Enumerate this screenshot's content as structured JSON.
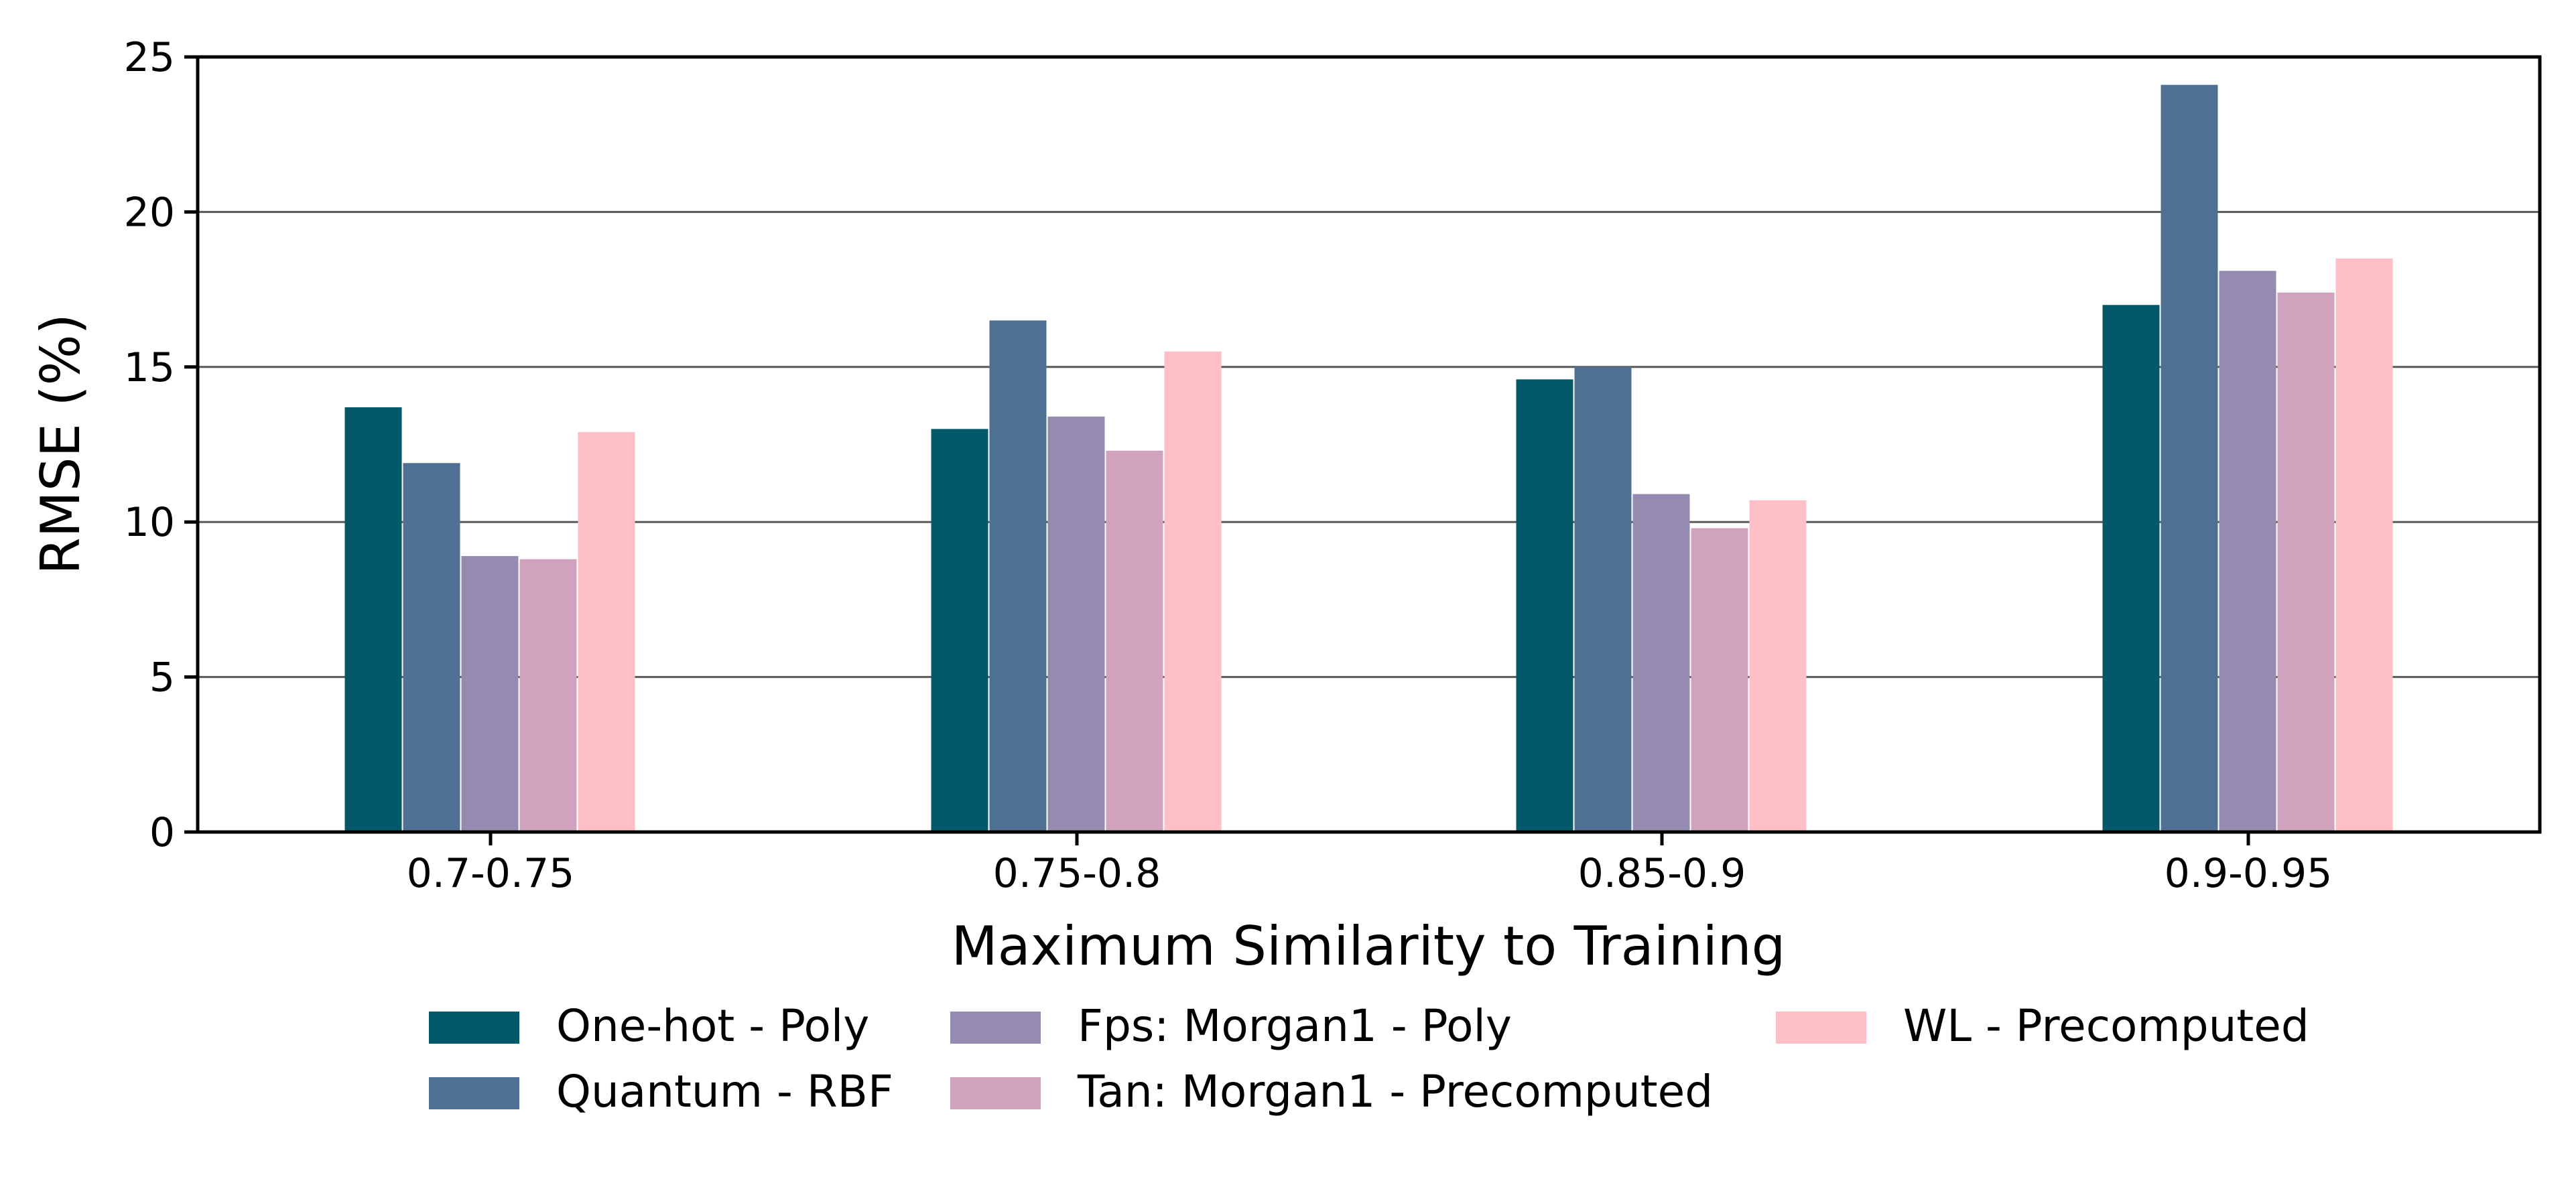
{
  "chart_data": {
    "type": "bar",
    "title": "",
    "xlabel": "Maximum Similarity to Training",
    "ylabel": "RMSE (%)",
    "ylim": [
      0,
      25
    ],
    "yticks": [
      "0",
      "5",
      "10",
      "15",
      "20",
      "25"
    ],
    "grid": "horizontal",
    "legend_placement": "bottom-center",
    "categories": [
      "0.7-0.75",
      "0.75-0.8",
      "0.85-0.9",
      "0.9-0.95"
    ],
    "series": [
      {
        "name": "One-hot - Poly",
        "color": "#03586a",
        "values": [
          13.7,
          13.0,
          14.6,
          17.0
        ]
      },
      {
        "name": "Quantum - RBF",
        "color": "#4f7092",
        "values": [
          11.9,
          16.5,
          15.0,
          24.1
        ]
      },
      {
        "name": "Fps: Morgan1 - Poly",
        "color": "#958ab0",
        "values": [
          8.9,
          13.4,
          10.9,
          18.1
        ]
      },
      {
        "name": "Tan: Morgan1 - Precomputed",
        "color": "#d1a2bd",
        "values": [
          8.8,
          12.3,
          9.8,
          17.4
        ]
      },
      {
        "name": "WL - Precomputed",
        "color": "#fec0c6",
        "values": [
          12.9,
          15.5,
          10.7,
          18.5
        ]
      }
    ]
  }
}
